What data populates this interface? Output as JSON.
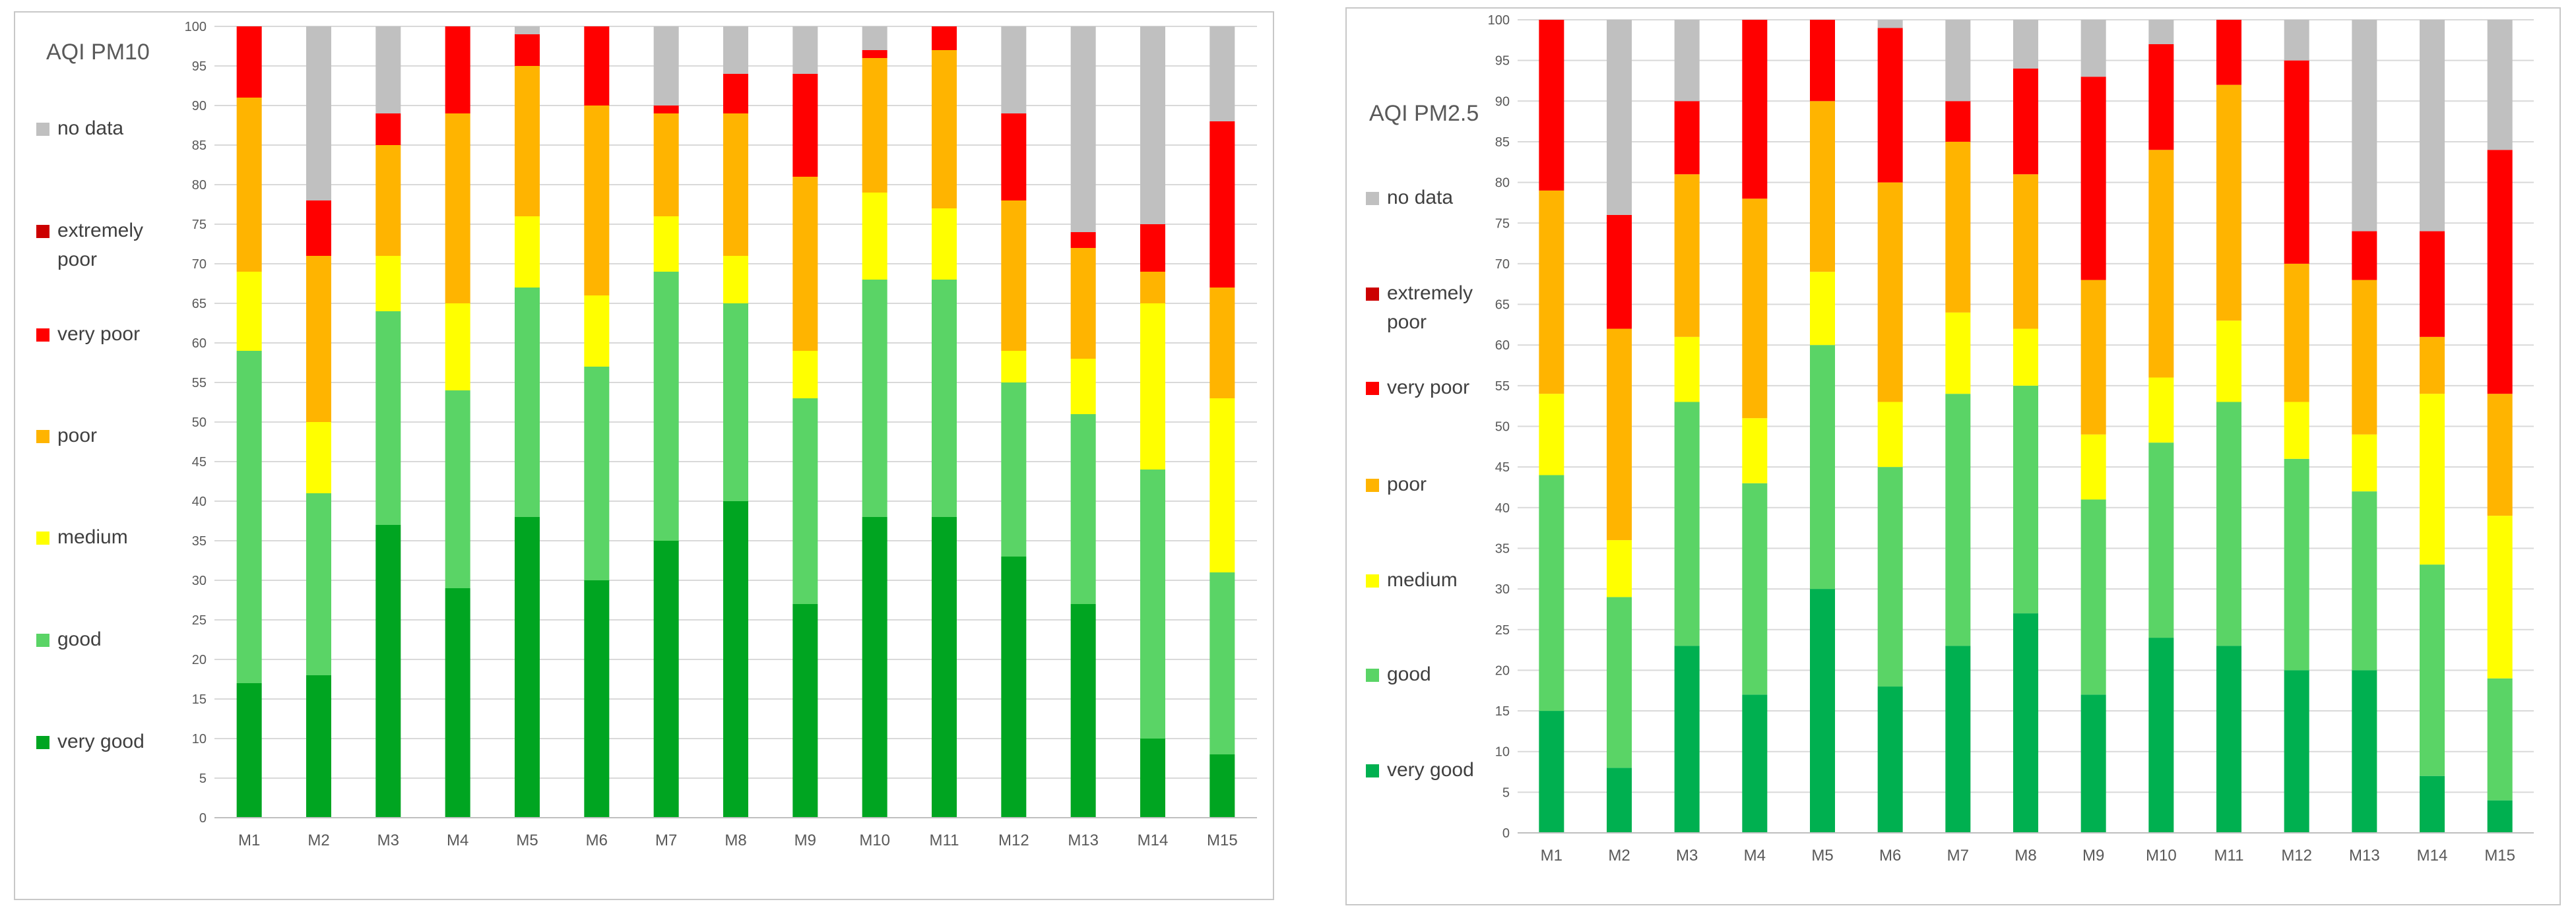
{
  "chart_data": [
    {
      "type": "bar",
      "stacked": true,
      "title": "AQI PM10",
      "categories": [
        "M1",
        "M2",
        "M3",
        "M4",
        "M5",
        "M6",
        "M7",
        "M8",
        "M9",
        "M10",
        "M11",
        "M12",
        "M13",
        "M14",
        "M15"
      ],
      "ylim": [
        0,
        100
      ],
      "yticks": [
        0,
        5,
        10,
        15,
        20,
        25,
        30,
        35,
        40,
        45,
        50,
        55,
        60,
        65,
        70,
        75,
        80,
        85,
        90,
        95,
        100
      ],
      "grid": true,
      "legend_position": "left",
      "series": [
        {
          "name": "very good",
          "color": "#00a521",
          "values": [
            17,
            18,
            37,
            29,
            38,
            30,
            35,
            40,
            27,
            38,
            38,
            33,
            27,
            10,
            8
          ]
        },
        {
          "name": "good",
          "color": "#5ad466",
          "values": [
            42,
            23,
            27,
            25,
            29,
            27,
            34,
            25,
            26,
            30,
            30,
            22,
            24,
            34,
            23
          ]
        },
        {
          "name": "medium",
          "color": "#ffff00",
          "values": [
            10,
            9,
            7,
            11,
            9,
            9,
            7,
            6,
            6,
            11,
            9,
            4,
            7,
            21,
            22
          ]
        },
        {
          "name": "poor",
          "color": "#ffb400",
          "values": [
            22,
            21,
            14,
            24,
            19,
            24,
            13,
            18,
            22,
            17,
            20,
            19,
            14,
            4,
            14
          ]
        },
        {
          "name": "very poor",
          "color": "#ff0000",
          "values": [
            9,
            7,
            4,
            11,
            4,
            10,
            1,
            5,
            13,
            1,
            3,
            11,
            2,
            6,
            21
          ]
        },
        {
          "name": "extremely poor",
          "color": "#cc0000",
          "values": [
            0,
            0,
            0,
            0,
            0,
            0,
            0,
            0,
            0,
            0,
            0,
            0,
            0,
            0,
            0
          ]
        },
        {
          "name": "no data",
          "color": "#c0c0c0",
          "values": [
            0,
            22,
            11,
            0,
            1,
            0,
            10,
            6,
            6,
            3,
            0,
            11,
            26,
            25,
            12
          ]
        }
      ]
    },
    {
      "type": "bar",
      "stacked": true,
      "title": "AQI PM2.5",
      "categories": [
        "M1",
        "M2",
        "M3",
        "M4",
        "M5",
        "M6",
        "M7",
        "M8",
        "M9",
        "M10",
        "M11",
        "M12",
        "M13",
        "M14",
        "M15"
      ],
      "ylim": [
        0,
        100
      ],
      "yticks": [
        0,
        5,
        10,
        15,
        20,
        25,
        30,
        35,
        40,
        45,
        50,
        55,
        60,
        65,
        70,
        75,
        80,
        85,
        90,
        95,
        100
      ],
      "grid": true,
      "legend_position": "left",
      "series": [
        {
          "name": "very good",
          "color": "#00b050",
          "values": [
            15,
            8,
            23,
            17,
            30,
            18,
            23,
            27,
            17,
            24,
            23,
            20,
            20,
            7,
            4
          ]
        },
        {
          "name": "good",
          "color": "#5ad466",
          "values": [
            29,
            21,
            30,
            26,
            30,
            27,
            31,
            28,
            24,
            24,
            30,
            26,
            22,
            26,
            15
          ]
        },
        {
          "name": "medium",
          "color": "#ffff00",
          "values": [
            10,
            7,
            8,
            8,
            9,
            8,
            10,
            7,
            8,
            8,
            10,
            7,
            7,
            21,
            20
          ]
        },
        {
          "name": "poor",
          "color": "#ffb400",
          "values": [
            25,
            26,
            20,
            27,
            21,
            27,
            21,
            19,
            19,
            28,
            29,
            17,
            19,
            7,
            15
          ]
        },
        {
          "name": "very poor",
          "color": "#ff0000",
          "values": [
            21,
            14,
            9,
            22,
            10,
            19,
            5,
            13,
            25,
            13,
            8,
            25,
            6,
            13,
            30
          ]
        },
        {
          "name": "extremely poor",
          "color": "#cc0000",
          "values": [
            0,
            0,
            0,
            0,
            0,
            0,
            0,
            0,
            0,
            0,
            0,
            0,
            0,
            0,
            0
          ]
        },
        {
          "name": "no data",
          "color": "#c0c0c0",
          "values": [
            0,
            24,
            10,
            0,
            0,
            1,
            10,
            6,
            7,
            3,
            0,
            5,
            26,
            26,
            16
          ]
        }
      ],
      "legend_order": [
        "no data",
        "extremely poor",
        "very poor",
        "poor",
        "medium",
        "good",
        "very good"
      ],
      "legend_labels": {
        "no data": "no data",
        "extremely poor": "extremely poor",
        "very poor": "very poor",
        "poor": "poor",
        "medium": "medium",
        "good": "good",
        "very good": "very good"
      }
    }
  ]
}
